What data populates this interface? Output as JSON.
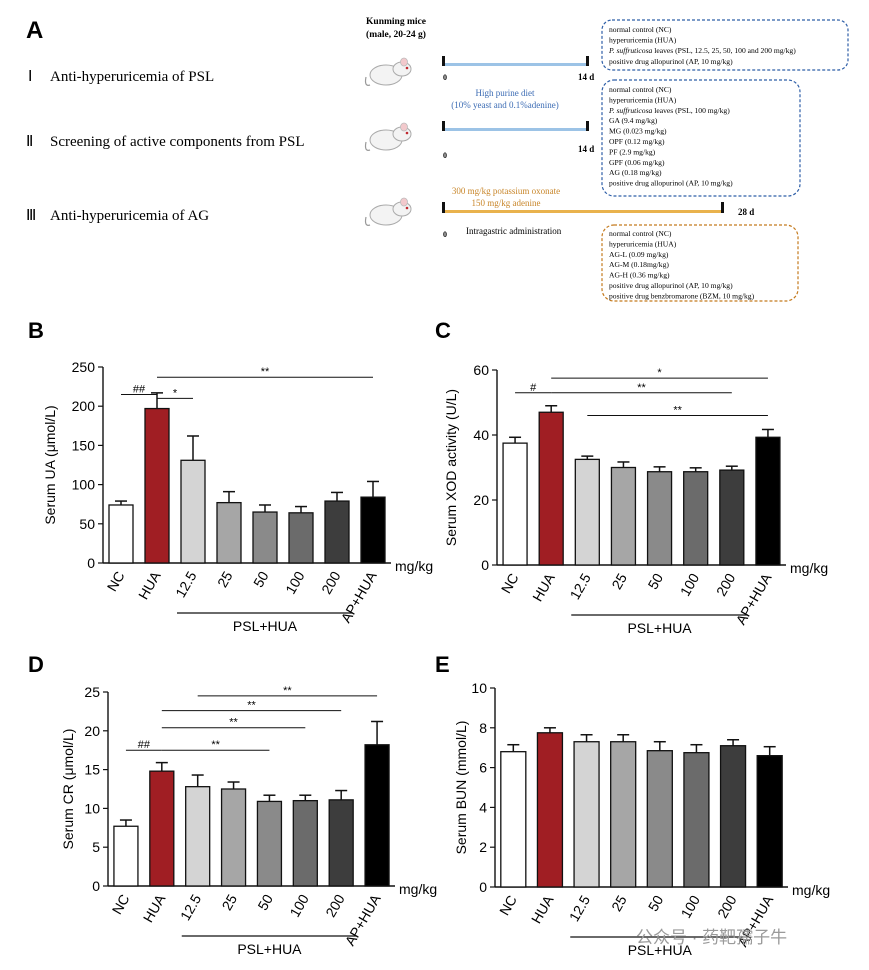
{
  "panel_a": {
    "letter": "A",
    "mice_title": "Kunming mice",
    "mice_sub": "(male, 20-24 g)",
    "rows": [
      {
        "numeral": "Ⅰ",
        "title": "Anti-hyperuricemia of PSL",
        "end_label": "14 d",
        "start_label": "0"
      },
      {
        "numeral": "Ⅱ",
        "title": "Screening of active components from PSL",
        "end_label": "14 d",
        "start_label": "0"
      },
      {
        "numeral": "Ⅲ",
        "title": "Anti-hyperuricemia of AG",
        "end_label": "28 d",
        "start_label": "0"
      }
    ],
    "diet_label_1": "High purine diet",
    "diet_label_2": "(10% yeast and 0.1%adenine)",
    "oxonate_1": "300 mg/kg potassium oxonate",
    "oxonate_2": "150 mg/kg adenine",
    "admin_label": "Intragastric administration",
    "box1": [
      {
        "pre": "",
        "italic": "",
        "post": "normal control (NC)"
      },
      {
        "pre": "",
        "italic": "",
        "post": "hyperuricemia (HUA)"
      },
      {
        "pre": "",
        "italic": "P. suffruticosa",
        "post": " leaves  (PSL, 12.5, 25, 50, 100 and 200 mg/kg)"
      },
      {
        "pre": "",
        "italic": "",
        "post": "positive drug allopurinol (AP, 10 mg/kg)"
      }
    ],
    "box2": [
      {
        "pre": "",
        "italic": "",
        "post": "normal control (NC)"
      },
      {
        "pre": "",
        "italic": "",
        "post": "hyperuricemia (HUA)"
      },
      {
        "pre": "",
        "italic": "P. suffruticosa",
        "post": " leaves  (PSL, 100 mg/kg)"
      },
      {
        "pre": "",
        "italic": "",
        "post": "GA (9.4 mg/kg)"
      },
      {
        "pre": "",
        "italic": "",
        "post": "MG (0.023 mg/kg)"
      },
      {
        "pre": "",
        "italic": "",
        "post": "OPF   (0.12 mg/kg)"
      },
      {
        "pre": "",
        "italic": "",
        "post": "PF    (2.9 mg/kg)"
      },
      {
        "pre": "",
        "italic": "",
        "post": "GPF (0.06 mg/kg)"
      },
      {
        "pre": "",
        "italic": "",
        "post": "AG (0.18 mg/kg)"
      },
      {
        "pre": "",
        "italic": "",
        "post": "positive drug allopurinol (AP, 10 mg/kg)"
      }
    ],
    "box3": [
      {
        "pre": "",
        "italic": "",
        "post": "normal control (NC)"
      },
      {
        "pre": "",
        "italic": "",
        "post": "hyperuricemia (HUA)"
      },
      {
        "pre": "",
        "italic": "",
        "post": "AG-L (0.09 mg/kg)"
      },
      {
        "pre": "",
        "italic": "",
        "post": "AG-M (0.18mg/kg)"
      },
      {
        "pre": "",
        "italic": "",
        "post": "AG-H (0.36 mg/kg)"
      },
      {
        "pre": "",
        "italic": "",
        "post": "positive drug allopurinol (AP, 10 mg/kg)"
      },
      {
        "pre": "",
        "italic": "",
        "post": "positive drug benzbromarone (BZM, 10 mg/kg)"
      }
    ],
    "colors": {
      "blue_box": "#2f5fa8",
      "orange_box": "#c47a1d",
      "blue_bar": "#9cc3e6",
      "orange_bar": "#e9b24d",
      "blue_text": "#3c6cb4",
      "orange_text": "#c8862a"
    }
  },
  "watermark": "公众号 · 药靶孺子牛",
  "bar_colors": [
    "#ffffff",
    "#a01e23",
    "#d4d4d4",
    "#a6a6a6",
    "#8a8a8a",
    "#6b6b6b",
    "#3d3d3d",
    "#000000"
  ],
  "chart_data": [
    {
      "letter": "B",
      "type": "bar",
      "categories": [
        "NC",
        "HUA",
        "12.5",
        "25",
        "50",
        "100",
        "200",
        "AP+HUA"
      ],
      "values": [
        74,
        197,
        131,
        77,
        65,
        64,
        79,
        84
      ],
      "errors": [
        5,
        20,
        31,
        14,
        9,
        8,
        11,
        20
      ],
      "ylabel": "Serum UA (μmol/L)",
      "ylim": [
        0,
        250
      ],
      "yticks": [
        0,
        50,
        100,
        150,
        200,
        250
      ],
      "unit_label": "mg/kg",
      "group_label": "PSL+HUA",
      "group_range": [
        2,
        6
      ],
      "annotations": [
        {
          "from": 0,
          "to": 1,
          "label": "##",
          "y": 215
        },
        {
          "from": 1,
          "to": 2,
          "label": "*",
          "y": 210
        },
        {
          "from": 1,
          "to": 7,
          "label": "**",
          "y": 237
        }
      ]
    },
    {
      "letter": "C",
      "type": "bar",
      "categories": [
        "NC",
        "HUA",
        "12.5",
        "25",
        "50",
        "100",
        "200",
        "AP+HUA"
      ],
      "values": [
        37.5,
        47,
        32.5,
        30,
        28.7,
        28.7,
        29.2,
        39.3
      ],
      "errors": [
        1.8,
        2,
        1,
        1.7,
        1.5,
        1.2,
        1.2,
        2.4
      ],
      "ylabel": "Serum XOD activity (U/L)",
      "ylim": [
        0,
        60
      ],
      "yticks": [
        0,
        20,
        40,
        60
      ],
      "unit_label": "mg/kg",
      "group_label": "PSL+HUA",
      "group_range": [
        2,
        6
      ],
      "annotations": [
        {
          "from": 0,
          "to": 1,
          "label": "#",
          "y": 53
        },
        {
          "from": 1,
          "to": 7,
          "label": "*",
          "y": 57.5
        },
        {
          "from": 1,
          "to": 6,
          "label": "**",
          "y": 53
        },
        {
          "from": 2,
          "to": 7,
          "label": "**",
          "y": 46
        }
      ]
    },
    {
      "letter": "D",
      "type": "bar",
      "categories": [
        "NC",
        "HUA",
        "12.5",
        "25",
        "50",
        "100",
        "200",
        "AP+HUA"
      ],
      "values": [
        7.7,
        14.8,
        12.8,
        12.5,
        10.9,
        11,
        11.1,
        18.2
      ],
      "errors": [
        0.8,
        1.1,
        1.5,
        0.9,
        0.8,
        0.7,
        1.2,
        3
      ],
      "ylabel": "Serum CR (μmol/L)",
      "ylim": [
        0,
        25
      ],
      "yticks": [
        0,
        5,
        10,
        15,
        20,
        25
      ],
      "unit_label": "mg/kg",
      "group_label": "PSL+HUA",
      "group_range": [
        2,
        6
      ],
      "annotations": [
        {
          "from": 0,
          "to": 1,
          "label": "##",
          "y": 17.5
        },
        {
          "from": 1,
          "to": 4,
          "label": "**",
          "y": 17.5
        },
        {
          "from": 1,
          "to": 5,
          "label": "**",
          "y": 20.4
        },
        {
          "from": 1,
          "to": 6,
          "label": "**",
          "y": 22.6
        },
        {
          "from": 2,
          "to": 7,
          "label": "**",
          "y": 24.5
        }
      ]
    },
    {
      "letter": "E",
      "type": "bar",
      "categories": [
        "NC",
        "HUA",
        "12.5",
        "25",
        "50",
        "100",
        "200",
        "AP+HUA"
      ],
      "values": [
        6.8,
        7.75,
        7.3,
        7.3,
        6.85,
        6.75,
        7.1,
        6.6
      ],
      "errors": [
        0.35,
        0.25,
        0.35,
        0.35,
        0.45,
        0.4,
        0.3,
        0.45
      ],
      "ylabel": "Serum BUN (mmol/L)",
      "ylim": [
        0,
        10
      ],
      "yticks": [
        0,
        2,
        4,
        6,
        8,
        10
      ],
      "unit_label": "mg/kg",
      "group_label": "PSL+HUA",
      "group_range": [
        2,
        6
      ],
      "annotations": []
    }
  ]
}
